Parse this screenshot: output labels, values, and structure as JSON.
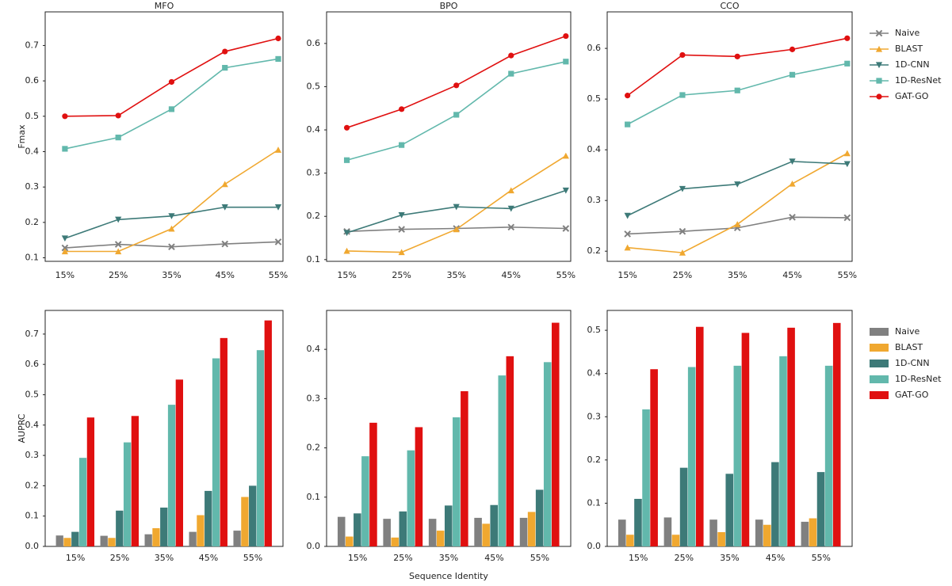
{
  "chart_data": [
    {
      "type": "line",
      "title": "MFO",
      "ylabel": "Fmax",
      "categories": [
        "15%",
        "25%",
        "35%",
        "45%",
        "55%"
      ],
      "ylim": [
        0.09,
        0.795
      ],
      "yticks": [
        0.1,
        0.2,
        0.3,
        0.4,
        0.5,
        0.6,
        0.7
      ],
      "series": [
        {
          "color": "#808080",
          "marker": "x",
          "values": [
            0.128,
            0.138,
            0.131,
            0.139,
            0.145
          ]
        },
        {
          "color": "#f0a830",
          "marker": "^",
          "values": [
            0.118,
            0.118,
            0.182,
            0.308,
            0.405
          ]
        },
        {
          "color": "#3d7a78",
          "marker": "v",
          "values": [
            0.155,
            0.208,
            0.218,
            0.243,
            0.243
          ]
        },
        {
          "color": "#62b8ac",
          "marker": "s",
          "values": [
            0.408,
            0.44,
            0.52,
            0.637,
            0.662
          ]
        },
        {
          "color": "#e01010",
          "marker": "o",
          "values": [
            0.5,
            0.502,
            0.597,
            0.683,
            0.72
          ]
        }
      ]
    },
    {
      "type": "line",
      "title": "BPO",
      "categories": [
        "15%",
        "25%",
        "35%",
        "45%",
        "55%"
      ],
      "ylim": [
        0.096,
        0.673
      ],
      "yticks": [
        0.1,
        0.2,
        0.3,
        0.4,
        0.5,
        0.6
      ],
      "series": [
        {
          "color": "#808080",
          "marker": "x",
          "values": [
            0.165,
            0.17,
            0.172,
            0.175,
            0.172
          ]
        },
        {
          "color": "#f0a830",
          "marker": "^",
          "values": [
            0.12,
            0.117,
            0.17,
            0.26,
            0.34
          ]
        },
        {
          "color": "#3d7a78",
          "marker": "v",
          "values": [
            0.162,
            0.203,
            0.222,
            0.218,
            0.26
          ]
        },
        {
          "color": "#62b8ac",
          "marker": "s",
          "values": [
            0.33,
            0.365,
            0.435,
            0.53,
            0.558
          ]
        },
        {
          "color": "#e01010",
          "marker": "o",
          "values": [
            0.405,
            0.448,
            0.503,
            0.572,
            0.617
          ]
        }
      ]
    },
    {
      "type": "line",
      "title": "CCO",
      "legend": "right",
      "categories": [
        "15%",
        "25%",
        "35%",
        "45%",
        "55%"
      ],
      "ylim": [
        0.18,
        0.672
      ],
      "yticks": [
        0.2,
        0.3,
        0.4,
        0.5,
        0.6
      ],
      "series": [
        {
          "name": "Naive",
          "color": "#808080",
          "marker": "x",
          "values": [
            0.234,
            0.239,
            0.246,
            0.267,
            0.266
          ]
        },
        {
          "name": "BLAST",
          "color": "#f0a830",
          "marker": "^",
          "values": [
            0.207,
            0.197,
            0.253,
            0.333,
            0.393
          ]
        },
        {
          "name": "1D-CNN",
          "color": "#3d7a78",
          "marker": "v",
          "values": [
            0.27,
            0.323,
            0.332,
            0.377,
            0.372
          ]
        },
        {
          "name": "1D-ResNet",
          "color": "#62b8ac",
          "marker": "s",
          "values": [
            0.45,
            0.508,
            0.517,
            0.548,
            0.57
          ]
        },
        {
          "name": "GAT-GO",
          "color": "#e01010",
          "marker": "o",
          "values": [
            0.507,
            0.587,
            0.584,
            0.598,
            0.62
          ]
        }
      ]
    },
    {
      "type": "bar",
      "ylabel": "AUPRC",
      "categories": [
        "15%",
        "25%",
        "35%",
        "45%",
        "55%"
      ],
      "ylim": [
        0,
        0.778
      ],
      "yticks": [
        {
          "value": 0,
          "label": "0.0"
        },
        0.1,
        0.2,
        0.3,
        0.4,
        0.5,
        0.6,
        0.7
      ],
      "series": [
        {
          "color": "#808080",
          "values": [
            0.036,
            0.035,
            0.04,
            0.048,
            0.052
          ]
        },
        {
          "color": "#f0a830",
          "values": [
            0.028,
            0.028,
            0.06,
            0.103,
            0.163
          ]
        },
        {
          "color": "#3d7a78",
          "values": [
            0.048,
            0.118,
            0.128,
            0.183,
            0.2
          ]
        },
        {
          "color": "#62b8ac",
          "values": [
            0.292,
            0.343,
            0.467,
            0.62,
            0.647
          ]
        },
        {
          "color": "#e01010",
          "values": [
            0.425,
            0.43,
            0.55,
            0.687,
            0.745
          ]
        }
      ]
    },
    {
      "type": "bar",
      "xlabel": "Sequence Identity",
      "categories": [
        "15%",
        "25%",
        "35%",
        "45%",
        "55%"
      ],
      "ylim": [
        0,
        0.479
      ],
      "yticks": [
        {
          "value": 0,
          "label": "0.0"
        },
        0.1,
        0.2,
        0.3,
        0.4
      ],
      "series": [
        {
          "color": "#808080",
          "values": [
            0.06,
            0.056,
            0.056,
            0.058,
            0.058
          ]
        },
        {
          "color": "#f0a830",
          "values": [
            0.02,
            0.018,
            0.032,
            0.046,
            0.07
          ]
        },
        {
          "color": "#3d7a78",
          "values": [
            0.067,
            0.071,
            0.083,
            0.084,
            0.115
          ]
        },
        {
          "color": "#62b8ac",
          "values": [
            0.183,
            0.195,
            0.262,
            0.347,
            0.374
          ]
        },
        {
          "color": "#e01010",
          "values": [
            0.251,
            0.242,
            0.315,
            0.386,
            0.454
          ]
        }
      ]
    },
    {
      "type": "bar",
      "legend": "right",
      "categories": [
        "15%",
        "25%",
        "35%",
        "45%",
        "55%"
      ],
      "ylim": [
        0,
        0.546
      ],
      "yticks": [
        {
          "value": 0,
          "label": "0.0"
        },
        0.1,
        0.2,
        0.3,
        0.4,
        0.5
      ],
      "series": [
        {
          "name": "Naive",
          "color": "#808080",
          "values": [
            0.062,
            0.067,
            0.062,
            0.062,
            0.057
          ]
        },
        {
          "name": "BLAST",
          "color": "#f0a830",
          "values": [
            0.027,
            0.027,
            0.033,
            0.05,
            0.065
          ]
        },
        {
          "name": "1D-CNN",
          "color": "#3d7a78",
          "values": [
            0.11,
            0.182,
            0.168,
            0.195,
            0.172
          ]
        },
        {
          "name": "1D-ResNet",
          "color": "#62b8ac",
          "values": [
            0.317,
            0.415,
            0.418,
            0.44,
            0.418
          ]
        },
        {
          "name": "GAT-GO",
          "color": "#e01010",
          "values": [
            0.41,
            0.508,
            0.494,
            0.506,
            0.517
          ]
        }
      ]
    }
  ]
}
